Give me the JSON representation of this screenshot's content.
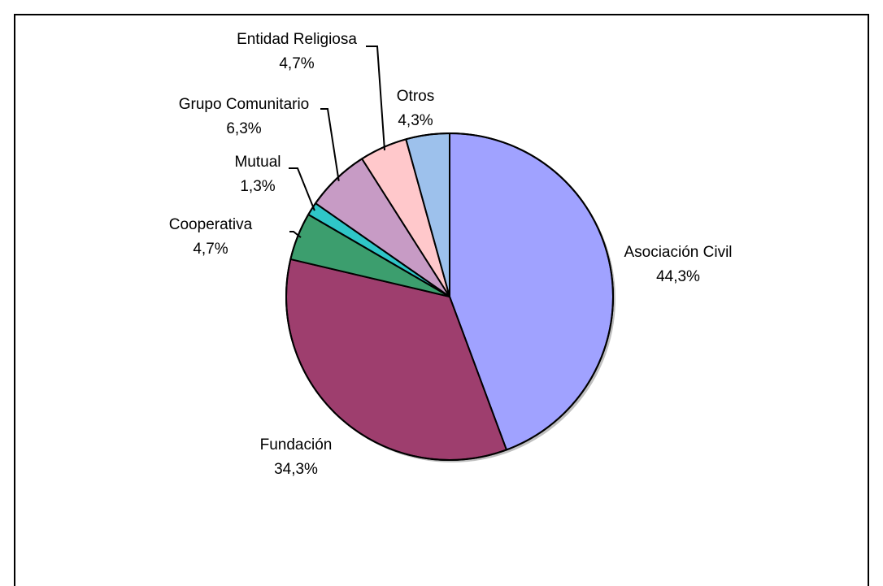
{
  "chart_data": {
    "type": "pie",
    "title": "",
    "categories": [
      "Asociación Civil",
      "Fundación",
      "Cooperativa",
      "Mutual",
      "Grupo Comunitario",
      "Entidad Religiosa",
      "Otros"
    ],
    "values": [
      44.3,
      34.3,
      4.7,
      1.3,
      6.3,
      4.7,
      4.3
    ],
    "value_labels": [
      "44,3%",
      "34,3%",
      "4,7%",
      "1,3%",
      "6,3%",
      "4,7%",
      "4,3%"
    ],
    "colors": [
      "#A0A2FF",
      "#9E3E6E",
      "#3C9E6E",
      "#2FC6C8",
      "#C79BC5",
      "#FFC8CB",
      "#9DC1EC"
    ],
    "legend": "none",
    "start_angle_deg": 0,
    "direction": "clockwise"
  }
}
